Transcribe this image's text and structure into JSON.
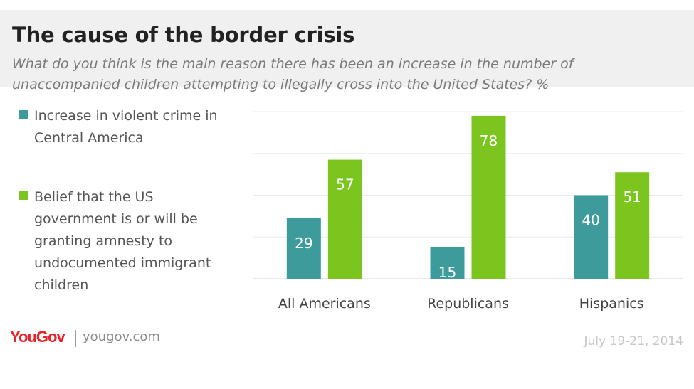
{
  "title": "The cause of the border crisis",
  "subtitle": "What do you think is the main reason there has been an increase in the number of unaccompanied children attempting to illegally cross into the United States? %",
  "brand": {
    "logo_text": "YouGov",
    "site": "yougov.com"
  },
  "date": "July 19-21, 2014",
  "colors": {
    "teal": "#3d9b9c",
    "green": "#7cc51f",
    "header_bg": "#f0f0f0"
  },
  "chart_data": {
    "type": "bar",
    "categories": [
      "All Americans",
      "Republicans",
      "Hispanics"
    ],
    "series": [
      {
        "name": "Increase in violent crime in Central America",
        "color": "#3d9b9c",
        "values": [
          29,
          15,
          40
        ]
      },
      {
        "name": "Belief that the US government is or will be granting amnesty to undocumented immigrant children",
        "color": "#7cc51f",
        "values": [
          57,
          78,
          51
        ]
      }
    ],
    "ylim": [
      0,
      80
    ],
    "grid": true,
    "legend": "left"
  }
}
